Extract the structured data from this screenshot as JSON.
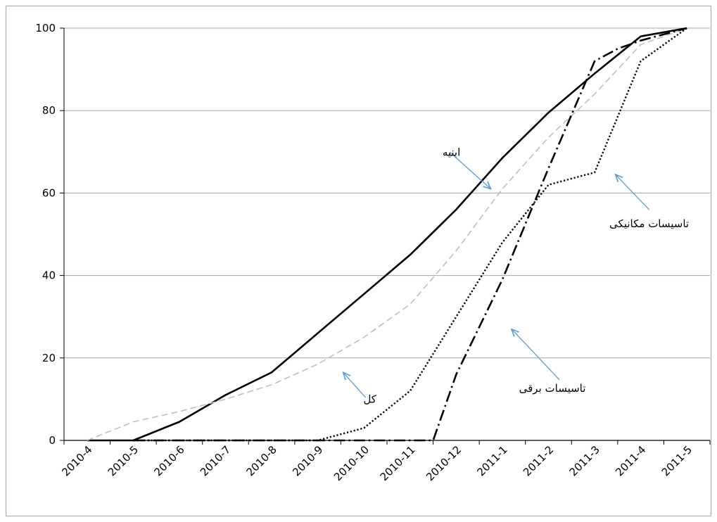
{
  "chart_data": {
    "type": "line",
    "title": "",
    "xlabel": "",
    "ylabel": "",
    "categories": [
      "2010-4",
      "2010-5",
      "2010-6",
      "2010-7",
      "2010-8",
      "2010-9",
      "2010-10",
      "2010-11",
      "2010-12",
      "2011-1",
      "2011-2",
      "2011-3",
      "2011-4",
      "2011-5"
    ],
    "ylim": [
      0,
      100
    ],
    "yticks": [
      0,
      20,
      40,
      60,
      80,
      100
    ],
    "grid": "horizontal",
    "legend": "none",
    "series": [
      {
        "name": "ابنیه",
        "style": "solid",
        "color": "#000000",
        "points": [
          [
            0,
            0
          ],
          [
            1,
            0
          ],
          [
            2,
            4.5
          ],
          [
            3,
            11
          ],
          [
            4,
            16.5
          ],
          [
            5,
            26
          ],
          [
            6,
            35.5
          ],
          [
            7,
            45
          ],
          [
            8,
            56
          ],
          [
            9,
            68.5
          ],
          [
            10,
            79.5
          ],
          [
            11,
            89
          ],
          [
            12,
            98
          ],
          [
            13,
            100
          ]
        ]
      },
      {
        "name": "کل",
        "style": "dashed",
        "color": "#bfbfbf",
        "points": [
          [
            0,
            0
          ],
          [
            1,
            4.5
          ],
          [
            2,
            7
          ],
          [
            3,
            10
          ],
          [
            4,
            13.5
          ],
          [
            5,
            18.5
          ],
          [
            6,
            25
          ],
          [
            7,
            33
          ],
          [
            8,
            46
          ],
          [
            9,
            61
          ],
          [
            10,
            73.5
          ],
          [
            11,
            84
          ],
          [
            12,
            96
          ],
          [
            13,
            100
          ]
        ]
      },
      {
        "name": "تاسیسات برقی",
        "style": "dashdot",
        "color": "#000000",
        "points": [
          [
            1,
            0
          ],
          [
            2,
            0
          ],
          [
            3,
            0
          ],
          [
            4,
            0
          ],
          [
            5,
            0
          ],
          [
            6,
            0
          ],
          [
            7,
            0
          ],
          [
            7.5,
            0
          ],
          [
            8,
            16
          ],
          [
            9,
            39
          ],
          [
            10,
            66
          ],
          [
            11,
            92
          ],
          [
            11.5,
            95
          ],
          [
            12,
            97
          ],
          [
            13,
            100
          ]
        ]
      },
      {
        "name": "تاسیسات مکانیکی",
        "style": "dotted",
        "color": "#000000",
        "points": [
          [
            1,
            0
          ],
          [
            2,
            0
          ],
          [
            3,
            0
          ],
          [
            4,
            0
          ],
          [
            5,
            0
          ],
          [
            6,
            3
          ],
          [
            7,
            12
          ],
          [
            8,
            30
          ],
          [
            9,
            48
          ],
          [
            10,
            62
          ],
          [
            11,
            65
          ],
          [
            12,
            92
          ],
          [
            13,
            100
          ]
        ]
      }
    ],
    "annotations": [
      {
        "text": "ابنیه",
        "series": "ابنیه",
        "anchor": [
          8.75,
          61
        ]
      },
      {
        "text": "کل",
        "series": "کل",
        "anchor": [
          5.55,
          16.5
        ]
      },
      {
        "text": "تاسیسات برقی",
        "series": "تاسیسات برقی",
        "anchor": [
          9.2,
          27
        ]
      },
      {
        "text": "تاسیسات مکانیکی",
        "series": "تاسیسات مکانیکی",
        "anchor": [
          11.45,
          64.5
        ]
      }
    ],
    "colors": {
      "grid": "#a6a6a6",
      "axis": "#000000",
      "arrow": "#5b9bd5"
    }
  }
}
